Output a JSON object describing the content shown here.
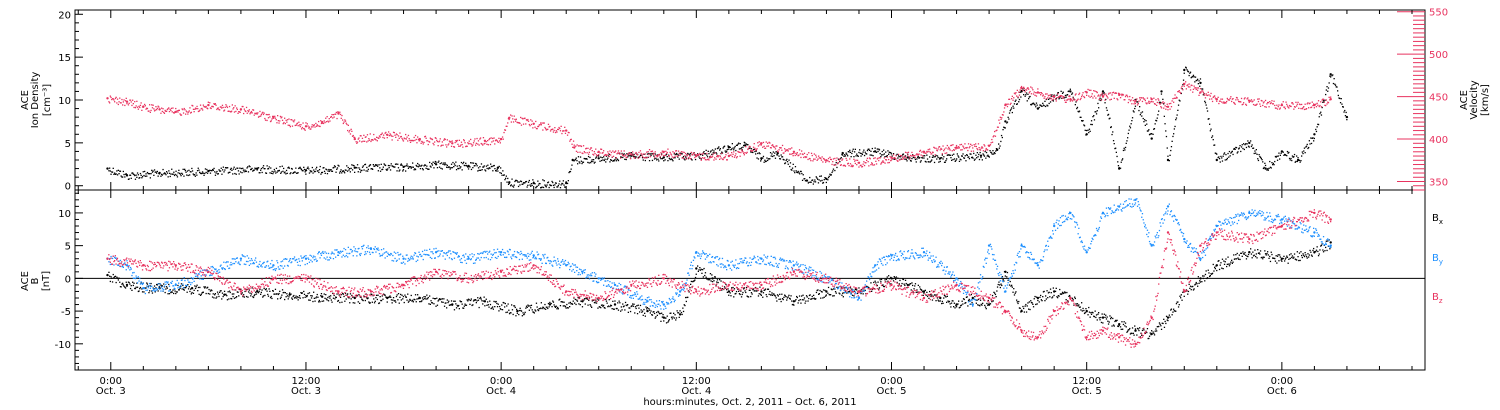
{
  "chart_data": [
    {
      "type": "scatter",
      "panel": "top",
      "ylabel_left": [
        "ACE",
        "Ion Density",
        "[cm⁻³]"
      ],
      "ylabel_right": [
        "ACE",
        "Velocity",
        "[km/s]"
      ],
      "ylim_left": [
        -0.5,
        20.5
      ],
      "ylim_right": [
        340,
        552
      ],
      "yticks_left": [
        0,
        5,
        10,
        15,
        20
      ],
      "yticks_right": [
        350,
        400,
        450,
        500,
        550
      ],
      "colors": {
        "density": "#000000",
        "velocity": "#e8335f"
      },
      "series": [
        {
          "axis": "left",
          "color": "#000000",
          "points": [
            [
              -0.2,
              2
            ],
            [
              1,
              1.2
            ],
            [
              3,
              1.5
            ],
            [
              6,
              1.7
            ],
            [
              9,
              2.0
            ],
            [
              12,
              1.8
            ],
            [
              15,
              2.1
            ],
            [
              18,
              2.2
            ],
            [
              20,
              2.5
            ],
            [
              22,
              2.3
            ],
            [
              23.8,
              2.1
            ],
            [
              24.5,
              0.4
            ],
            [
              26,
              0.3
            ],
            [
              28,
              0.3
            ],
            [
              28.4,
              3.0
            ],
            [
              30,
              3.2
            ],
            [
              32,
              3.5
            ],
            [
              34,
              3.3
            ],
            [
              36,
              3.5
            ],
            [
              38,
              4.5
            ],
            [
              39,
              4.7
            ],
            [
              40,
              3.2
            ],
            [
              41,
              3.8
            ],
            [
              42.8,
              0.6
            ],
            [
              44,
              0.8
            ],
            [
              45,
              3.8
            ],
            [
              47,
              4.0
            ],
            [
              49,
              3.3
            ],
            [
              51,
              3.2
            ],
            [
              53.5,
              3.5
            ],
            [
              54.5,
              4.2
            ],
            [
              55,
              7.5
            ],
            [
              56,
              11
            ],
            [
              57,
              9
            ],
            [
              58,
              10.5
            ],
            [
              59,
              11
            ],
            [
              60,
              6
            ],
            [
              61,
              11
            ],
            [
              62,
              2
            ],
            [
              63,
              10
            ],
            [
              64,
              5.5
            ],
            [
              64.6,
              11
            ],
            [
              65,
              3
            ],
            [
              66,
              13.5
            ],
            [
              67,
              12
            ],
            [
              68,
              3
            ],
            [
              70,
              5
            ],
            [
              71,
              2
            ],
            [
              72,
              4
            ],
            [
              73,
              3
            ],
            [
              74,
              6
            ],
            [
              75,
              13
            ],
            [
              76,
              8
            ]
          ]
        },
        {
          "axis": "right",
          "color": "#e8335f",
          "points": [
            [
              -0.2,
              448
            ],
            [
              1,
              444
            ],
            [
              2,
              438
            ],
            [
              3,
              435
            ],
            [
              4,
              432
            ],
            [
              6,
              440
            ],
            [
              8,
              435
            ],
            [
              10,
              425
            ],
            [
              12,
              415
            ],
            [
              13,
              420
            ],
            [
              14,
              430
            ],
            [
              15,
              400
            ],
            [
              17,
              405
            ],
            [
              19,
              400
            ],
            [
              21,
              395
            ],
            [
              23,
              398
            ],
            [
              24,
              400
            ],
            [
              24.5,
              425
            ],
            [
              26,
              418
            ],
            [
              28,
              410
            ],
            [
              28.5,
              390
            ],
            [
              30,
              385
            ],
            [
              32,
              382
            ],
            [
              34,
              385
            ],
            [
              36,
              380
            ],
            [
              38,
              380
            ],
            [
              40,
              395
            ],
            [
              42,
              385
            ],
            [
              44,
              375
            ],
            [
              46,
              372
            ],
            [
              48,
              378
            ],
            [
              50,
              385
            ],
            [
              52,
              390
            ],
            [
              54,
              392
            ],
            [
              55,
              440
            ],
            [
              56,
              460
            ],
            [
              57,
              455
            ],
            [
              58,
              450
            ],
            [
              59,
              447
            ],
            [
              60,
              455
            ],
            [
              61,
              450
            ],
            [
              62,
              452
            ],
            [
              63,
              445
            ],
            [
              64,
              447
            ],
            [
              65,
              438
            ],
            [
              66,
              465
            ],
            [
              67,
              455
            ],
            [
              68,
              447
            ],
            [
              70,
              445
            ],
            [
              72,
              440
            ],
            [
              74,
              440
            ],
            [
              75,
              447
            ]
          ]
        }
      ]
    },
    {
      "type": "scatter",
      "panel": "bottom",
      "ylabel": [
        "ACE",
        "B",
        "[nT]"
      ],
      "ylim": [
        -14,
        13.5
      ],
      "yticks": [
        -10,
        -5,
        0,
        5,
        10
      ],
      "zero_line": true,
      "legend_position": "right",
      "series": [
        {
          "name": "Bx",
          "color": "#000000",
          "points": [
            [
              -0.2,
              0.5
            ],
            [
              1,
              -1
            ],
            [
              3,
              -1.5
            ],
            [
              5,
              -1.5
            ],
            [
              7,
              -2.5
            ],
            [
              9,
              -2
            ],
            [
              11,
              -2.5
            ],
            [
              13,
              -2.8
            ],
            [
              15,
              -3
            ],
            [
              17,
              -3
            ],
            [
              19,
              -3
            ],
            [
              21,
              -4
            ],
            [
              23,
              -3.5
            ],
            [
              25,
              -5
            ],
            [
              27,
              -4
            ],
            [
              29,
              -3.5
            ],
            [
              31,
              -4
            ],
            [
              33,
              -5
            ],
            [
              34,
              -6
            ],
            [
              35,
              -5.5
            ],
            [
              36,
              1.5
            ],
            [
              37,
              0
            ],
            [
              38,
              -2
            ],
            [
              40,
              -2
            ],
            [
              42,
              -3.5
            ],
            [
              44,
              -2
            ],
            [
              46,
              -2
            ],
            [
              48,
              0
            ],
            [
              49,
              -1
            ],
            [
              50,
              -2
            ],
            [
              51,
              -3
            ],
            [
              52,
              -4
            ],
            [
              53,
              -3
            ],
            [
              54,
              -4
            ],
            [
              55,
              1
            ],
            [
              56,
              -5
            ],
            [
              57,
              -3
            ],
            [
              58,
              -2
            ],
            [
              59,
              -3
            ],
            [
              60,
              -5
            ],
            [
              61,
              -6
            ],
            [
              62,
              -7
            ],
            [
              63,
              -8
            ],
            [
              64,
              -8.5
            ],
            [
              65,
              -6
            ],
            [
              66,
              -2
            ],
            [
              67,
              0
            ],
            [
              68,
              2
            ],
            [
              70,
              4
            ],
            [
              72,
              3
            ],
            [
              74,
              4
            ],
            [
              75,
              5.5
            ]
          ]
        },
        {
          "name": "By",
          "color": "#1e90ff",
          "points": [
            [
              -0.2,
              3
            ],
            [
              1,
              2
            ],
            [
              2,
              -1.5
            ],
            [
              4,
              -1
            ],
            [
              6,
              1
            ],
            [
              8,
              3
            ],
            [
              10,
              2
            ],
            [
              12,
              3
            ],
            [
              14,
              4
            ],
            [
              16,
              4.5
            ],
            [
              18,
              3
            ],
            [
              20,
              4
            ],
            [
              22,
              3
            ],
            [
              24,
              4
            ],
            [
              26,
              3.5
            ],
            [
              28,
              2
            ],
            [
              29,
              1
            ],
            [
              30,
              0
            ],
            [
              31,
              -1
            ],
            [
              33,
              -3.5
            ],
            [
              34,
              -4
            ],
            [
              35,
              -2
            ],
            [
              36,
              4
            ],
            [
              38,
              2
            ],
            [
              40,
              3
            ],
            [
              42,
              2
            ],
            [
              44,
              0
            ],
            [
              46,
              -3
            ],
            [
              47,
              2
            ],
            [
              48,
              3.5
            ],
            [
              50,
              4
            ],
            [
              52,
              0
            ],
            [
              53,
              -4
            ],
            [
              54,
              5
            ],
            [
              55,
              -2
            ],
            [
              56,
              5
            ],
            [
              57,
              2
            ],
            [
              58,
              8
            ],
            [
              59,
              10
            ],
            [
              60,
              4
            ],
            [
              61,
              10
            ],
            [
              62,
              11
            ],
            [
              63,
              12
            ],
            [
              64,
              5
            ],
            [
              65,
              11
            ],
            [
              66,
              6
            ],
            [
              67,
              3
            ],
            [
              68,
              8
            ],
            [
              70,
              10
            ],
            [
              72,
              9
            ],
            [
              74,
              7
            ],
            [
              75,
              5
            ]
          ]
        },
        {
          "name": "Bz",
          "color": "#e8335f",
          "points": [
            [
              -0.2,
              3
            ],
            [
              2,
              2
            ],
            [
              4,
              2
            ],
            [
              6,
              1
            ],
            [
              8,
              -2
            ],
            [
              10,
              0
            ],
            [
              12,
              0
            ],
            [
              14,
              -2
            ],
            [
              16,
              -2
            ],
            [
              18,
              -1
            ],
            [
              20,
              1
            ],
            [
              22,
              0
            ],
            [
              24,
              1
            ],
            [
              26,
              2
            ],
            [
              28,
              -2
            ],
            [
              30,
              -3
            ],
            [
              32,
              -1
            ],
            [
              34,
              0
            ],
            [
              36,
              -2
            ],
            [
              38,
              -1
            ],
            [
              40,
              -1
            ],
            [
              42,
              1
            ],
            [
              44,
              0
            ],
            [
              46,
              -2
            ],
            [
              48,
              -1
            ],
            [
              50,
              -3
            ],
            [
              52,
              -1
            ],
            [
              54,
              -3
            ],
            [
              55,
              -5
            ],
            [
              56,
              -8
            ],
            [
              57,
              -9
            ],
            [
              58,
              -5
            ],
            [
              59,
              -3
            ],
            [
              60,
              -9
            ],
            [
              61,
              -8
            ],
            [
              62,
              -9
            ],
            [
              63,
              -10
            ],
            [
              64,
              -6
            ],
            [
              65,
              7
            ],
            [
              66,
              -2
            ],
            [
              67,
              5
            ],
            [
              68,
              7
            ],
            [
              70,
              6
            ],
            [
              72,
              8
            ],
            [
              74,
              10
            ],
            [
              75,
              9
            ]
          ]
        }
      ]
    }
  ],
  "x_axis": {
    "label": "hours:minutes, Oct.  2, 2011 – Oct.  6, 2011",
    "xlim": [
      -2.2,
      80.8
    ],
    "major_ticks": [
      {
        "hour": 0,
        "time": "0:00",
        "date": "Oct.  3"
      },
      {
        "hour": 12,
        "time": "12:00",
        "date": "Oct.  3"
      },
      {
        "hour": 24,
        "time": "0:00",
        "date": "Oct.  4"
      },
      {
        "hour": 36,
        "time": "12:00",
        "date": "Oct.  4"
      },
      {
        "hour": 48,
        "time": "0:00",
        "date": "Oct.  5"
      },
      {
        "hour": 60,
        "time": "12:00",
        "date": "Oct.  5"
      },
      {
        "hour": 72,
        "time": "0:00",
        "date": "Oct.  6"
      }
    ],
    "minor_tick_step_hours": 2
  },
  "legend": {
    "bx": "B",
    "bx_sub": "x",
    "by": "B",
    "by_sub": "y",
    "bz": "B",
    "bz_sub": "z"
  }
}
